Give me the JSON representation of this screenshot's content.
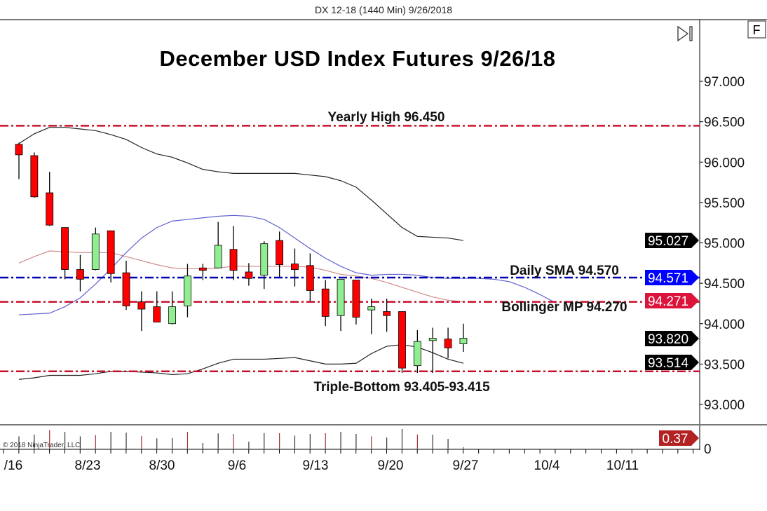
{
  "header": {
    "text": "DX 12-18 (1440 Min)  9/26/2018",
    "f_button": "F"
  },
  "copyright": "© 2018 NinjaTrader, LLC",
  "chart_data": {
    "type": "candlestick",
    "title": "December USD Index Futures 9/26/18",
    "ylim": [
      92.6,
      97.75
    ],
    "y_ticks": [
      "97.000",
      "96.500",
      "96.000",
      "95.500",
      "95.000",
      "94.500",
      "94.000",
      "93.500",
      "93.000"
    ],
    "x_ticks": [
      "/16",
      "8/23",
      "8/30",
      "9/6",
      "9/13",
      "9/20",
      "9/27",
      "10/4",
      "10/11"
    ],
    "grid": false,
    "colors": {
      "up": "#90ee90",
      "down": "#ff0000",
      "upper_lower_band": "#222222",
      "middle_band": "#d08a8a",
      "blue_line": "#6060d0",
      "red_level": "#c8102e",
      "blue_level": "#0000b0"
    },
    "candles": [
      {
        "o": 96.22,
        "h": 96.24,
        "l": 95.79,
        "c": 96.09
      },
      {
        "o": 96.08,
        "h": 96.12,
        "l": 95.56,
        "c": 95.57
      },
      {
        "o": 95.62,
        "h": 95.88,
        "l": 95.21,
        "c": 95.22
      },
      {
        "o": 95.19,
        "h": 95.19,
        "l": 94.55,
        "c": 94.67
      },
      {
        "o": 94.67,
        "h": 94.85,
        "l": 94.4,
        "c": 94.55
      },
      {
        "o": 94.67,
        "h": 95.19,
        "l": 94.66,
        "c": 95.11
      },
      {
        "o": 95.15,
        "h": 95.15,
        "l": 94.51,
        "c": 94.62
      },
      {
        "o": 94.63,
        "h": 94.78,
        "l": 94.17,
        "c": 94.22
      },
      {
        "o": 94.27,
        "h": 94.4,
        "l": 93.91,
        "c": 94.18
      },
      {
        "o": 94.21,
        "h": 94.4,
        "l": 94.02,
        "c": 94.02
      },
      {
        "o": 94.0,
        "h": 94.4,
        "l": 93.99,
        "c": 94.21
      },
      {
        "o": 94.22,
        "h": 94.74,
        "l": 94.08,
        "c": 94.59
      },
      {
        "o": 94.69,
        "h": 94.74,
        "l": 94.54,
        "c": 94.66
      },
      {
        "o": 94.69,
        "h": 95.26,
        "l": 94.69,
        "c": 94.97
      },
      {
        "o": 94.92,
        "h": 95.21,
        "l": 94.54,
        "c": 94.66
      },
      {
        "o": 94.64,
        "h": 94.75,
        "l": 94.47,
        "c": 94.56
      },
      {
        "o": 94.6,
        "h": 95.02,
        "l": 94.43,
        "c": 94.99
      },
      {
        "o": 95.03,
        "h": 95.14,
        "l": 94.58,
        "c": 94.73
      },
      {
        "o": 94.74,
        "h": 94.93,
        "l": 94.46,
        "c": 94.67
      },
      {
        "o": 94.72,
        "h": 94.87,
        "l": 94.28,
        "c": 94.41
      },
      {
        "o": 94.43,
        "h": 94.54,
        "l": 93.97,
        "c": 94.09
      },
      {
        "o": 94.1,
        "h": 94.55,
        "l": 93.91,
        "c": 94.55
      },
      {
        "o": 94.54,
        "h": 94.54,
        "l": 93.99,
        "c": 94.08
      },
      {
        "o": 94.17,
        "h": 94.31,
        "l": 93.87,
        "c": 94.21
      },
      {
        "o": 94.15,
        "h": 94.31,
        "l": 93.9,
        "c": 94.1
      },
      {
        "o": 94.15,
        "h": 94.15,
        "l": 93.39,
        "c": 93.45
      },
      {
        "o": 93.48,
        "h": 93.92,
        "l": 93.39,
        "c": 93.78
      },
      {
        "o": 93.79,
        "h": 93.95,
        "l": 93.39,
        "c": 93.82
      },
      {
        "o": 93.81,
        "h": 93.95,
        "l": 93.57,
        "c": 93.7
      },
      {
        "o": 93.75,
        "h": 94.0,
        "l": 93.65,
        "c": 93.82
      }
    ],
    "upper_band": [
      96.23,
      96.35,
      96.43,
      96.43,
      96.41,
      96.39,
      96.34,
      96.28,
      96.18,
      96.1,
      96.06,
      95.99,
      95.91,
      95.88,
      95.86,
      95.86,
      95.86,
      95.86,
      95.86,
      95.84,
      95.82,
      95.77,
      95.69,
      95.53,
      95.36,
      95.19,
      95.08,
      95.07,
      95.06,
      95.03
    ],
    "middle_band": [
      94.75,
      94.83,
      94.9,
      94.89,
      94.88,
      94.88,
      94.88,
      94.83,
      94.78,
      94.73,
      94.69,
      94.68,
      94.68,
      94.69,
      94.71,
      94.71,
      94.71,
      94.71,
      94.71,
      94.7,
      94.66,
      94.61,
      94.59,
      94.56,
      94.51,
      94.45,
      94.39,
      94.33,
      94.29,
      94.27
    ],
    "lower_band": [
      93.31,
      93.33,
      93.36,
      93.36,
      93.36,
      93.38,
      93.41,
      93.41,
      93.4,
      93.39,
      93.37,
      93.38,
      93.44,
      93.51,
      93.56,
      93.56,
      93.56,
      93.57,
      93.58,
      93.54,
      93.5,
      93.5,
      93.51,
      93.63,
      93.72,
      93.74,
      93.71,
      93.64,
      93.56,
      93.51
    ],
    "blue_line": [
      94.11,
      94.12,
      94.13,
      94.21,
      94.32,
      94.49,
      94.68,
      94.88,
      95.06,
      95.19,
      95.27,
      95.29,
      95.31,
      95.33,
      95.34,
      95.33,
      95.29,
      95.19,
      95.06,
      94.93,
      94.81,
      94.71,
      94.63,
      94.6,
      94.61,
      94.61,
      94.6,
      94.57,
      94.56,
      94.56,
      94.56,
      94.55,
      94.52,
      94.45,
      94.36,
      94.26
    ],
    "volume": [
      50,
      57,
      75,
      68,
      50,
      55,
      68,
      65,
      52,
      42,
      43,
      68,
      23,
      62,
      60,
      28,
      63,
      63,
      53,
      60,
      63,
      68,
      60,
      50,
      45,
      80,
      57,
      57,
      40,
      6
    ],
    "levels": [
      {
        "label": "Yearly High 96.450",
        "value": 96.45,
        "color": "#c8102e"
      },
      {
        "label": "Daily SMA 94.570",
        "value": 94.57,
        "color": "#0000b0"
      },
      {
        "label": "Bollinger MP 94.270",
        "value": 94.27,
        "color": "#c8102e"
      },
      {
        "label": "Triple-Bottom 93.405-93.415",
        "value": 93.41,
        "color": "#c8102e"
      }
    ],
    "price_tags": [
      {
        "text": "95.027",
        "value": 95.027,
        "color": "#000000"
      },
      {
        "text": "94.571",
        "value": 94.571,
        "color": "#0000ff"
      },
      {
        "text": "94.271",
        "value": 94.271,
        "color": "#dc143c"
      },
      {
        "text": "93.820",
        "value": 93.82,
        "color": "#000000"
      },
      {
        "text": "93.514",
        "value": 93.514,
        "color": "#000000"
      }
    ],
    "volume_tag": {
      "text": "0.37",
      "color": "#b22222"
    },
    "volume_axis_label": "0"
  }
}
